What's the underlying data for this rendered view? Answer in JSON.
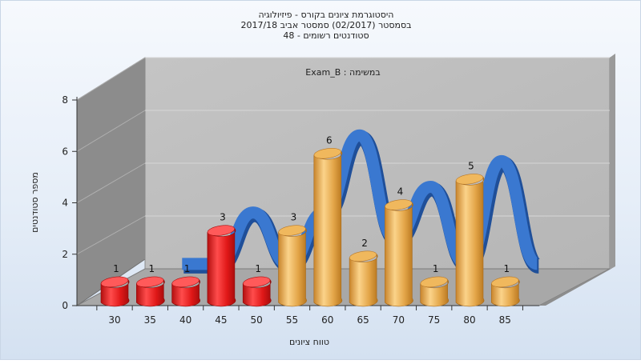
{
  "chart_data": {
    "type": "bar",
    "title_lines": [
      "היסטוגרמת ציונים בקורס - פיזיולוגיה",
      "בסמסטר  (02/2017)  סמסטר אביב 2017/18",
      "סטודנטים רשומים - 48"
    ],
    "assignment_label": "Exam_B : במשימה",
    "xlabel": "טווח ציונים",
    "ylabel": "מספר סטודנטים",
    "categories": [
      "30",
      "35",
      "40",
      "45",
      "50",
      "55",
      "60",
      "65",
      "70",
      "75",
      "80",
      "85"
    ],
    "values": [
      1,
      1,
      1,
      3,
      1,
      3,
      6,
      2,
      4,
      1,
      5,
      1
    ],
    "value_labels": [
      "1",
      "1",
      "1",
      "3",
      "1",
      "3",
      "6",
      "2",
      "4",
      "1",
      "5",
      "1"
    ],
    "yticks": [
      "0",
      "2",
      "4",
      "6",
      "8"
    ],
    "ylim": [
      0,
      8
    ],
    "grid": true,
    "colors": {
      "low_bars": "#dd1b1b",
      "high_bars": "#e1a34a",
      "curve": "#3a78d0",
      "plot_back": "#bdbdbd",
      "plot_side": "#8f8f8f"
    },
    "low_threshold": 55
  }
}
